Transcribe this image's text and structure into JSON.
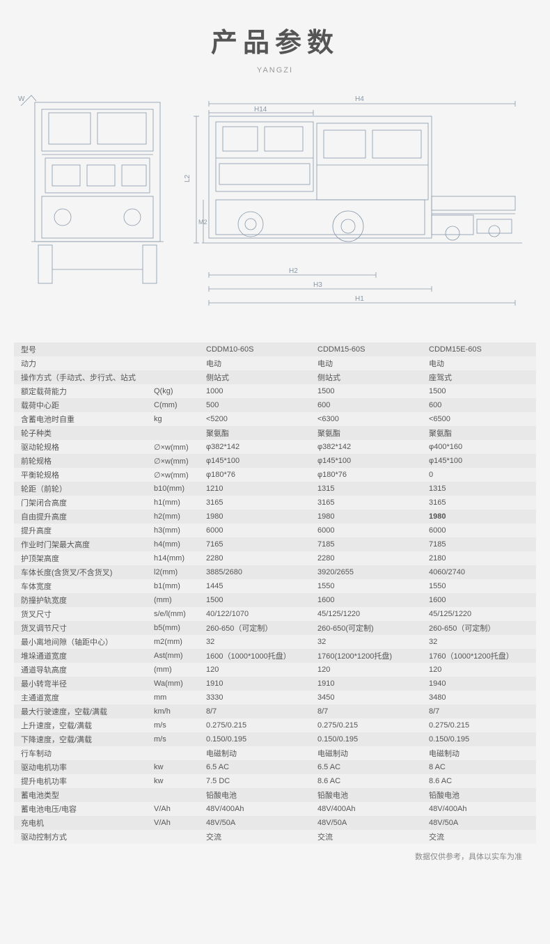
{
  "title": "产品参数",
  "subtitle": "YANGZI",
  "diagram": {
    "labels": {
      "h1": "H1",
      "h2": "H2",
      "h3": "H3",
      "h4": "H4",
      "h14": "H14",
      "m2": "M2",
      "l2": "L2",
      "w": "W"
    },
    "stroke": "#8897a8",
    "fill": "#f5f5f5"
  },
  "table": {
    "rows": [
      {
        "label": "型号",
        "unit": "",
        "c1": "CDDM10-60S",
        "c2": "CDDM15-60S",
        "c3": "CDDM15E-60S"
      },
      {
        "label": "动力",
        "unit": "",
        "c1": "电动",
        "c2": "电动",
        "c3": "电动"
      },
      {
        "label": "操作方式（手动式、步行式、站式",
        "unit": "",
        "c1": "侧站式",
        "c2": "侧站式",
        "c3": "座驾式"
      },
      {
        "label": "额定载荷能力",
        "unit": "Q(kg)",
        "c1": "1000",
        "c2": "1500",
        "c3": "1500"
      },
      {
        "label": "载荷中心距",
        "unit": "C(mm)",
        "c1": "500",
        "c2": "600",
        "c3": "600"
      },
      {
        "label": "含蓄电池时自重",
        "unit": "kg",
        "c1": "<5200",
        "c2": "<6300",
        "c3": "<6500"
      },
      {
        "label": "轮子种类",
        "unit": "",
        "c1": "聚氨酯",
        "c2": "聚氨酯",
        "c3": "聚氨酯"
      },
      {
        "label": "驱动轮规格",
        "unit": "∅×w(mm)",
        "c1": "φ382*142",
        "c2": "φ382*142",
        "c3": "φ400*160"
      },
      {
        "label": "前轮规格",
        "unit": "∅×w(mm)",
        "c1": "φ145*100",
        "c2": "φ145*100",
        "c3": "φ145*100"
      },
      {
        "label": "平衡轮规格",
        "unit": "∅×w(mm)",
        "c1": "φ180*76",
        "c2": "φ180*76",
        "c3": "0"
      },
      {
        "label": "轮距（前轮）",
        "unit": "b10(mm)",
        "c1": "1210",
        "c2": "1315",
        "c3": "1315"
      },
      {
        "label": "门架闭合高度",
        "unit": "h1(mm)",
        "c1": "3165",
        "c2": "3165",
        "c3": "3165"
      },
      {
        "label": "自由提升高度",
        "unit": "h2(mm)",
        "c1": "1980",
        "c2": "1980",
        "c3": "1980",
        "c3bold": true
      },
      {
        "label": "提升高度",
        "unit": "h3(mm)",
        "c1": "6000",
        "c2": "6000",
        "c3": "6000"
      },
      {
        "label": "作业时门架最大高度",
        "unit": "h4(mm)",
        "c1": "7165",
        "c2": "7185",
        "c3": "7185"
      },
      {
        "label": "护顶架高度",
        "unit": "h14(mm)",
        "c1": "2280",
        "c2": "2280",
        "c3": "2180"
      },
      {
        "label": "车体长度(含货叉/不含货叉)",
        "unit": "l2(mm)",
        "c1": "3885/2680",
        "c2": "3920/2655",
        "c3": "4060/2740"
      },
      {
        "label": "车体宽度",
        "unit": "b1(mm)",
        "c1": "1445",
        "c2": "1550",
        "c3": "1550"
      },
      {
        "label": "防撞护轨宽度",
        "unit": "(mm)",
        "c1": "1500",
        "c2": "1600",
        "c3": "1600"
      },
      {
        "label": "货叉尺寸",
        "unit": "s/e/l(mm)",
        "c1": "40/122/1070",
        "c2": "45/125/1220",
        "c3": "45/125/1220"
      },
      {
        "label": "货叉调节尺寸",
        "unit": "b5(mm)",
        "c1": "260-650（可定制）",
        "c2": "260-650(可定制)",
        "c3": "260-650（可定制）"
      },
      {
        "label": "最小离地间隙（轴距中心）",
        "unit": "m2(mm)",
        "c1": "32",
        "c2": "32",
        "c3": "32"
      },
      {
        "label": "堆垛通道宽度",
        "unit": "Ast(mm)",
        "c1": "1600（1000*1000托盘）",
        "c2": "1760(1200*1200托盘)",
        "c3": "1760（1000*1200托盘）"
      },
      {
        "label": "通道导轨高度",
        "unit": "(mm)",
        "c1": "120",
        "c2": "120",
        "c3": "120"
      },
      {
        "label": "最小转弯半径",
        "unit": "Wa(mm)",
        "c1": "1910",
        "c2": "1910",
        "c3": "1940"
      },
      {
        "label": "主通道宽度",
        "unit": "mm",
        "c1": "3330",
        "c2": "3450",
        "c3": "3480"
      },
      {
        "label": "最大行驶速度，空载/满载",
        "unit": "km/h",
        "c1": "8/7",
        "c2": "8/7",
        "c3": "8/7"
      },
      {
        "label": "上升速度，空载/满载",
        "unit": "m/s",
        "c1": "0.275/0.215",
        "c2": "0.275/0.215",
        "c3": "0.275/0.215"
      },
      {
        "label": "下降速度，空载/满载",
        "unit": "m/s",
        "c1": "0.150/0.195",
        "c2": "0.150/0.195",
        "c3": "0.150/0.195"
      },
      {
        "label": "行车制动",
        "unit": "",
        "c1": "电磁制动",
        "c2": "电磁制动",
        "c3": "电磁制动"
      },
      {
        "label": "驱动电机功率",
        "unit": "kw",
        "c1": "6.5 AC",
        "c2": "6.5 AC",
        "c3": "8 AC"
      },
      {
        "label": "提升电机功率",
        "unit": "kw",
        "c1": "7.5 DC",
        "c2": "8.6 AC",
        "c3": "8.6 AC"
      },
      {
        "label": "蓄电池类型",
        "unit": "",
        "c1": "铅酸电池",
        "c2": "铅酸电池",
        "c3": "铅酸电池"
      },
      {
        "label": "蓄电池电压/电容",
        "unit": "V/Ah",
        "c1": "48V/400Ah",
        "c2": "48V/400Ah",
        "c3": "48V/400Ah"
      },
      {
        "label": "充电机",
        "unit": "V/Ah",
        "c1": "48V/50A",
        "c2": "48V/50A",
        "c3": "48V/50A"
      },
      {
        "label": "驱动控制方式",
        "unit": "",
        "c1": "交流",
        "c2": "交流",
        "c3": "交流"
      }
    ]
  },
  "footnote": "数据仅供参考，具体以实车为准"
}
